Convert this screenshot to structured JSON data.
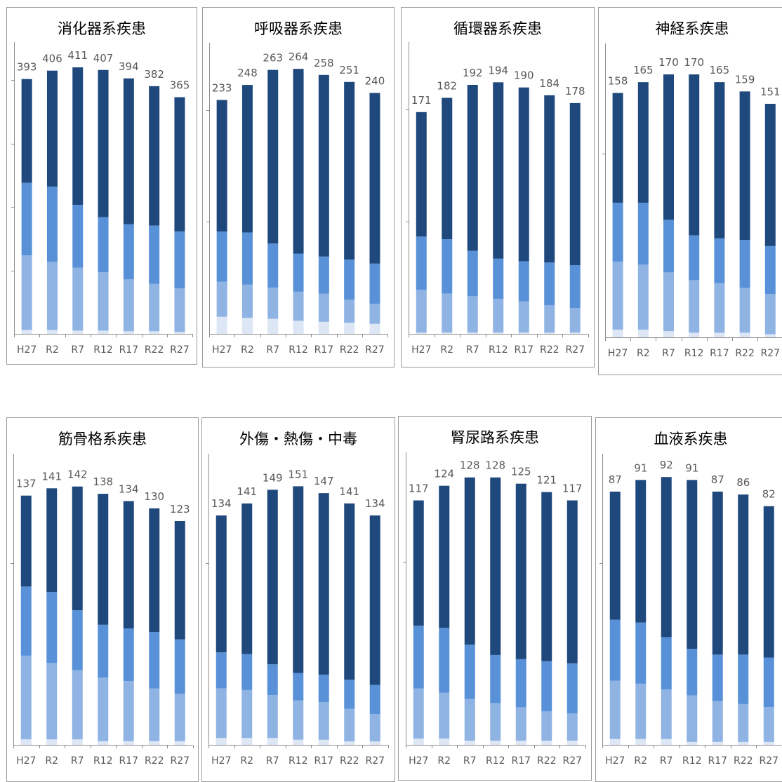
{
  "colors": {
    "background": "#ffffff",
    "border": "#9a9a9a",
    "axis": "#8c8c8c",
    "label_text": "#595959",
    "title_text": "#000000",
    "segments": [
      "#dce6f4",
      "#8fb3e3",
      "#5891d8",
      "#1f497d"
    ]
  },
  "chart_data": [
    {
      "type": "bar",
      "stacked": true,
      "title": "消化器系疾患",
      "categories": [
        "H27",
        "R2",
        "R7",
        "R12",
        "R17",
        "R22",
        "R27"
      ],
      "totals": [
        393,
        406,
        411,
        407,
        394,
        382,
        365
      ],
      "ylim": [
        0,
        450
      ],
      "series": [
        {
          "values": [
            6,
            6,
            5,
            5,
            4,
            4,
            3
          ]
        },
        {
          "values": [
            115,
            105,
            97,
            90,
            80,
            73,
            67
          ]
        },
        {
          "values": [
            112,
            116,
            97,
            85,
            85,
            90,
            88
          ]
        },
        {
          "values": [
            160,
            179,
            212,
            227,
            225,
            215,
            207
          ]
        }
      ]
    },
    {
      "type": "bar",
      "stacked": true,
      "title": "呼吸器系疾患",
      "categories": [
        "H27",
        "R2",
        "R7",
        "R12",
        "R17",
        "R22",
        "R27"
      ],
      "totals": [
        233,
        248,
        263,
        264,
        258,
        251,
        240
      ],
      "ylim": [
        0,
        290
      ],
      "series": [
        {
          "values": [
            17,
            16,
            15,
            13,
            12,
            11,
            10
          ]
        },
        {
          "values": [
            35,
            33,
            31,
            29,
            28,
            23,
            20
          ]
        },
        {
          "values": [
            50,
            52,
            44,
            38,
            37,
            40,
            40
          ]
        },
        {
          "values": [
            131,
            147,
            173,
            184,
            181,
            177,
            170
          ]
        }
      ]
    },
    {
      "type": "bar",
      "stacked": true,
      "title": "循環器系疾患",
      "categories": [
        "H27",
        "R2",
        "R7",
        "R12",
        "R17",
        "R22",
        "R27"
      ],
      "totals": [
        171,
        182,
        192,
        194,
        190,
        184,
        178
      ],
      "ylim": [
        0,
        225
      ],
      "series": [
        {
          "values": [
            1,
            1,
            1,
            1,
            1,
            1,
            1
          ]
        },
        {
          "values": [
            33,
            30,
            28,
            26,
            24,
            21,
            19
          ]
        },
        {
          "values": [
            41,
            42,
            35,
            31,
            31,
            33,
            33
          ]
        },
        {
          "values": [
            96,
            109,
            128,
            136,
            134,
            129,
            125
          ]
        }
      ]
    },
    {
      "type": "bar",
      "stacked": true,
      "title": "神経系疾患",
      "categories": [
        "H27",
        "R2",
        "R7",
        "R12",
        "R17",
        "R22",
        "R27"
      ],
      "totals": [
        158,
        165,
        170,
        170,
        165,
        159,
        151
      ],
      "ylim": [
        0,
        190
      ],
      "series": [
        {
          "values": [
            5,
            5,
            4,
            3,
            3,
            3,
            2
          ]
        },
        {
          "values": [
            44,
            42,
            38,
            34,
            32,
            29,
            26
          ]
        },
        {
          "values": [
            38,
            40,
            34,
            29,
            29,
            31,
            31
          ]
        },
        {
          "values": [
            71,
            78,
            94,
            104,
            101,
            96,
            92
          ]
        }
      ]
    },
    {
      "type": "bar",
      "stacked": true,
      "title": "筋骨格系疾患",
      "categories": [
        "H27",
        "R2",
        "R7",
        "R12",
        "R17",
        "R22",
        "R27"
      ],
      "totals": [
        137,
        141,
        142,
        138,
        134,
        130,
        123
      ],
      "ylim": [
        0,
        160
      ],
      "series": [
        {
          "values": [
            3,
            3,
            3,
            2,
            2,
            2,
            2
          ]
        },
        {
          "values": [
            46,
            42,
            38,
            35,
            33,
            29,
            26
          ]
        },
        {
          "values": [
            38,
            39,
            33,
            29,
            29,
            31,
            30
          ]
        },
        {
          "values": [
            50,
            57,
            68,
            72,
            70,
            68,
            65
          ]
        }
      ]
    },
    {
      "type": "bar",
      "stacked": true,
      "title": "外傷・熱傷・中毒",
      "categories": [
        "H27",
        "R2",
        "R7",
        "R12",
        "R17",
        "R22",
        "R27"
      ],
      "totals": [
        134,
        141,
        149,
        151,
        147,
        141,
        134
      ],
      "ylim": [
        0,
        170
      ],
      "series": [
        {
          "values": [
            4,
            4,
            4,
            3,
            3,
            2,
            2
          ]
        },
        {
          "values": [
            29,
            28,
            25,
            23,
            22,
            19,
            16
          ]
        },
        {
          "values": [
            21,
            21,
            18,
            16,
            16,
            17,
            17
          ]
        },
        {
          "values": [
            80,
            88,
            102,
            109,
            106,
            103,
            99
          ]
        }
      ]
    },
    {
      "type": "bar",
      "stacked": true,
      "title": "腎尿路系疾患",
      "categories": [
        "H27",
        "R2",
        "R7",
        "R12",
        "R17",
        "R22",
        "R27"
      ],
      "totals": [
        117,
        124,
        128,
        128,
        125,
        121,
        117
      ],
      "ylim": [
        0,
        140
      ],
      "series": [
        {
          "values": [
            3,
            3,
            2,
            2,
            2,
            2,
            2
          ]
        },
        {
          "values": [
            24,
            22,
            20,
            18,
            16,
            14,
            13
          ]
        },
        {
          "values": [
            30,
            31,
            26,
            23,
            23,
            24,
            24
          ]
        },
        {
          "values": [
            60,
            68,
            80,
            85,
            84,
            81,
            78
          ]
        }
      ]
    },
    {
      "type": "bar",
      "stacked": true,
      "title": "血液系疾患",
      "categories": [
        "H27",
        "R2",
        "R7",
        "R12",
        "R17",
        "R22",
        "R27"
      ],
      "totals": [
        87,
        91,
        92,
        91,
        87,
        86,
        82
      ],
      "ylim": [
        0,
        100
      ],
      "series": [
        {
          "values": [
            2,
            2,
            2,
            1,
            1,
            1,
            1
          ]
        },
        {
          "values": [
            20,
            19,
            17,
            16,
            14,
            13,
            12
          ]
        },
        {
          "values": [
            21,
            21,
            18,
            16,
            16,
            17,
            17
          ]
        },
        {
          "values": [
            44,
            49,
            55,
            58,
            56,
            55,
            52
          ]
        }
      ]
    }
  ]
}
